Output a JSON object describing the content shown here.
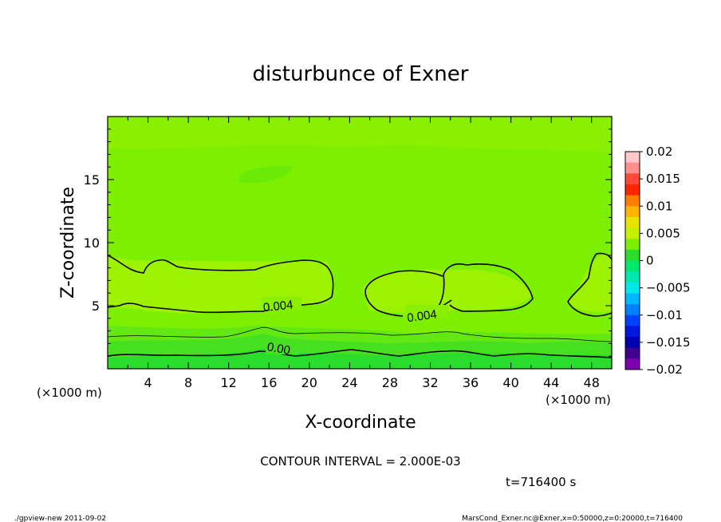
{
  "chart_data": {
    "type": "heatmap",
    "title": "disturbunce of Exner",
    "xlabel": "X-coordinate",
    "ylabel": "Z-coordinate",
    "x_unit_left": "(×1000 m)",
    "x_unit_right": "(×1000 m)",
    "xlim": [
      0,
      50
    ],
    "ylim": [
      0,
      20
    ],
    "xticks": [
      4,
      8,
      12,
      16,
      20,
      24,
      28,
      32,
      36,
      40,
      44,
      48
    ],
    "yticks": [
      5,
      10,
      15
    ],
    "colorbar": {
      "levels": [
        -0.02,
        -0.015,
        -0.01,
        -0.005,
        0,
        0.005,
        0.01,
        0.015,
        0.02
      ],
      "labels": [
        "0.02",
        "0.015",
        "0.01",
        "0.005",
        "0",
        "−0.005",
        "−0.01",
        "−0.015",
        "−0.02"
      ],
      "colors_top_to_bottom": [
        "#ffc8c8",
        "#ff8f8f",
        "#ff4a3a",
        "#ff2500",
        "#ff7e00",
        "#ffb400",
        "#e8e400",
        "#c6f000",
        "#7cf000",
        "#2cdc2c",
        "#00e86e",
        "#00e8b0",
        "#00e8e8",
        "#00b8ff",
        "#0080ff",
        "#0040ff",
        "#0018e0",
        "#0000b0",
        "#400090",
        "#8000b0"
      ]
    },
    "contour_labels": [
      "0.004",
      "0.004",
      "0.00"
    ],
    "contour_interval": "CONTOUR INTERVAL = 2.000E-03",
    "time": "t=716400 s"
  },
  "footer": {
    "left": "./gpview-new  2011-09-02",
    "right": "MarsCond_Exner.nc@Exner,x=0:50000,z=0:20000,t=716400"
  }
}
